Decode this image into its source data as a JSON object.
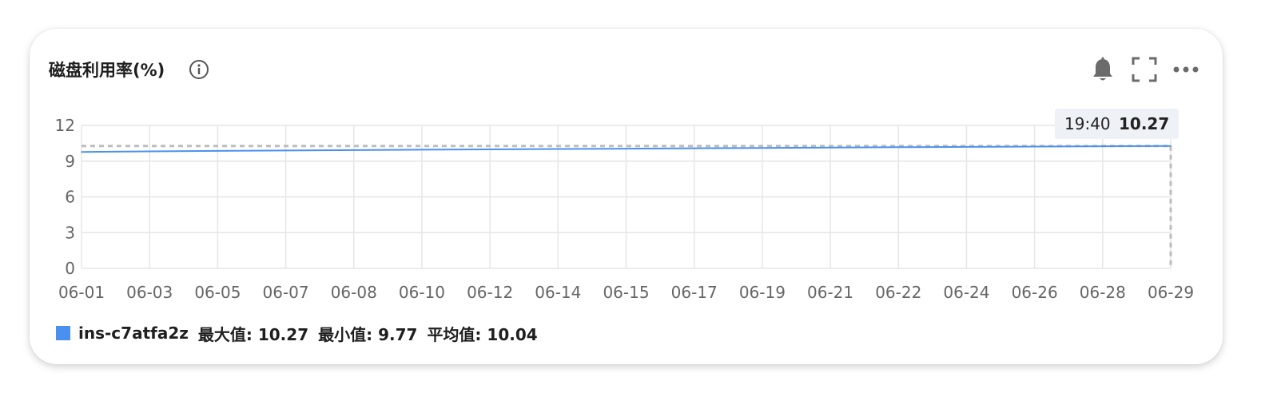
{
  "header": {
    "title": "磁盘利用率(%)",
    "icons": [
      "info-icon",
      "bell-icon",
      "fullscreen-icon",
      "more-icon"
    ]
  },
  "tooltip": {
    "time": "19:40",
    "value": "10.27"
  },
  "legend": {
    "series_name": "ins-c7atfa2z",
    "max_label": "最大值: 10.27",
    "min_label": "最小值: 9.77",
    "avg_label": "平均值: 10.04",
    "color": "#4a90f0"
  },
  "chart_data": {
    "type": "line",
    "categories": [
      "06-01",
      "06-03",
      "06-05",
      "06-07",
      "06-08",
      "06-10",
      "06-12",
      "06-14",
      "06-15",
      "06-17",
      "06-19",
      "06-21",
      "06-22",
      "06-24",
      "06-26",
      "06-28",
      "06-29"
    ],
    "y_ticks": [
      "0",
      "3",
      "6",
      "9",
      "12"
    ],
    "ylim": [
      0,
      12
    ],
    "series": [
      {
        "name": "ins-c7atfa2z",
        "values": [
          9.77,
          9.82,
          9.86,
          9.9,
          9.93,
          9.96,
          9.99,
          10.02,
          10.05,
          10.08,
          10.11,
          10.14,
          10.17,
          10.2,
          10.22,
          10.25,
          10.27
        ]
      }
    ],
    "reference_line": 10.27,
    "grid": true,
    "legend": "bottom-left"
  }
}
